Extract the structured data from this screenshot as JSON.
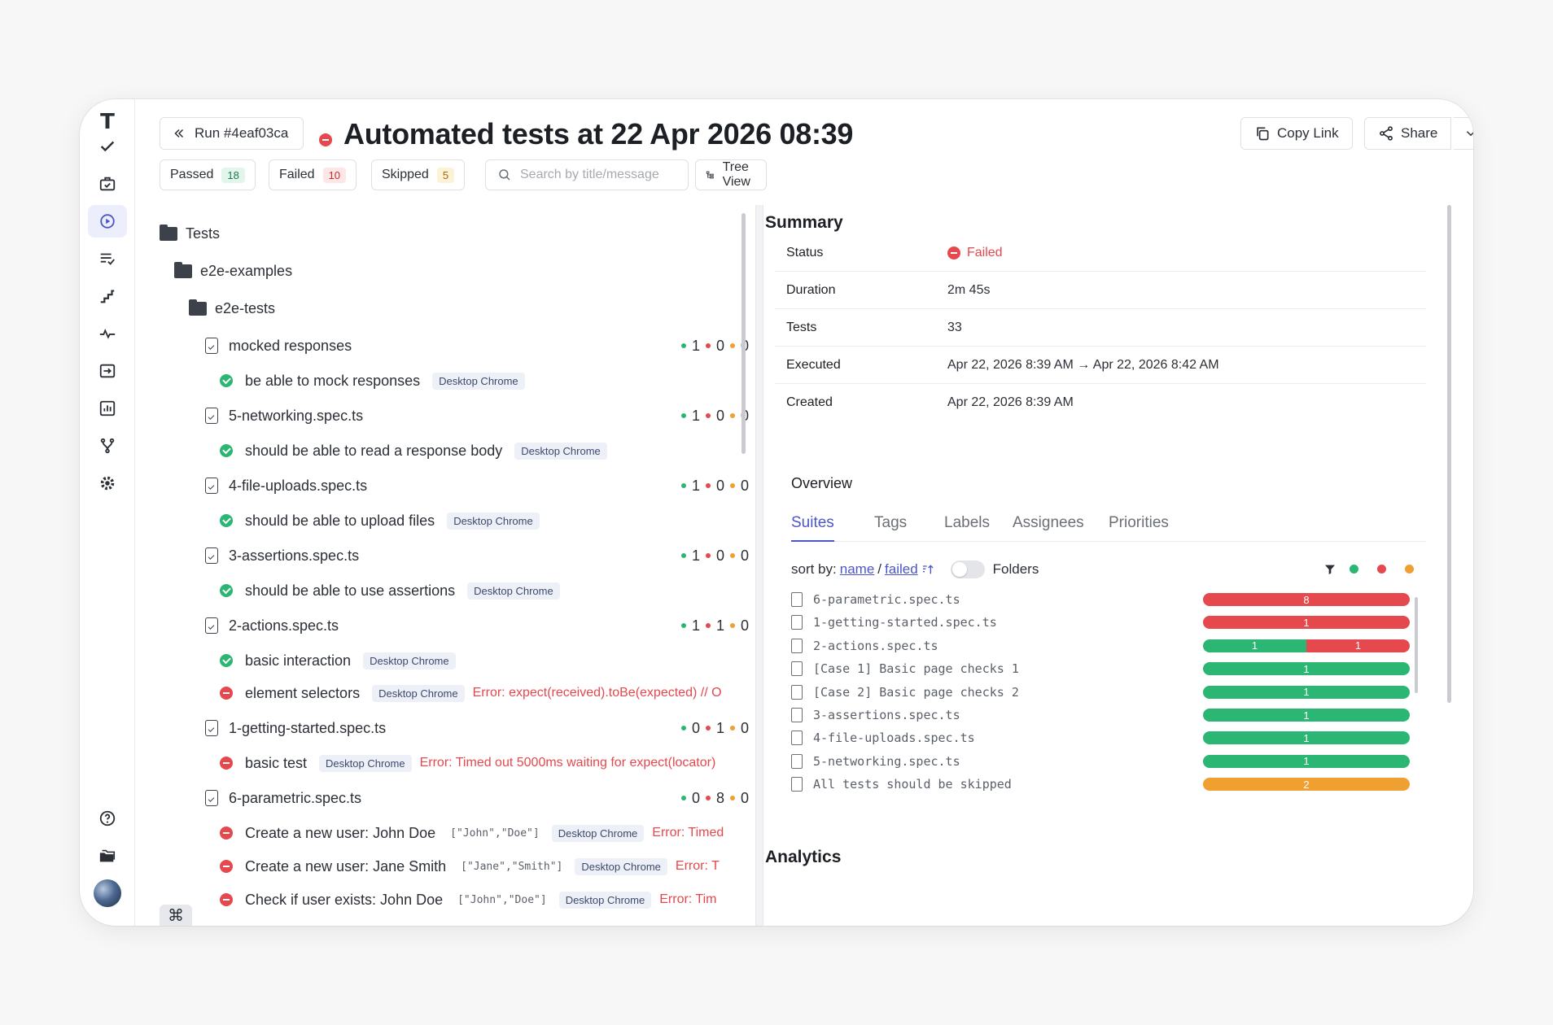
{
  "header": {
    "run_label": "Run #4eaf03ca",
    "title": "Automated tests at 22 Apr 2026 08:39",
    "copy_link": "Copy Link",
    "share": "Share"
  },
  "filters": {
    "passed_label": "Passed",
    "passed_count": "18",
    "failed_label": "Failed",
    "failed_count": "10",
    "skipped_label": "Skipped",
    "skipped_count": "5",
    "search_placeholder": "Search by title/message",
    "tree_view": "Tree View"
  },
  "tree": {
    "root": "Tests",
    "folder1": "e2e-examples",
    "folder2": "e2e-tests",
    "chip": "Desktop Chrome",
    "files": [
      {
        "name": "mocked responses",
        "passed": "1",
        "failed": "0",
        "skipped": "0",
        "tests": [
          {
            "title": "be able to mock responses",
            "status": "passed"
          }
        ]
      },
      {
        "name": "5-networking.spec.ts",
        "passed": "1",
        "failed": "0",
        "skipped": "0",
        "tests": [
          {
            "title": "should be able to read a response body",
            "status": "passed"
          }
        ]
      },
      {
        "name": "4-file-uploads.spec.ts",
        "passed": "1",
        "failed": "0",
        "skipped": "0",
        "tests": [
          {
            "title": "should be able to upload files",
            "status": "passed"
          }
        ]
      },
      {
        "name": "3-assertions.spec.ts",
        "passed": "1",
        "failed": "0",
        "skipped": "0",
        "tests": [
          {
            "title": "should be able to use assertions",
            "status": "passed"
          }
        ]
      },
      {
        "name": "2-actions.spec.ts",
        "passed": "1",
        "failed": "1",
        "skipped": "0",
        "tests": [
          {
            "title": "basic interaction",
            "status": "passed"
          },
          {
            "title": "element selectors",
            "status": "failed",
            "error": "Error: expect(received).toBe(expected) // O"
          }
        ]
      },
      {
        "name": "1-getting-started.spec.ts",
        "passed": "0",
        "failed": "1",
        "skipped": "0",
        "tests": [
          {
            "title": "basic test",
            "status": "failed",
            "error": "Error: Timed out 5000ms waiting for expect(locator)"
          }
        ]
      },
      {
        "name": "6-parametric.spec.ts",
        "passed": "0",
        "failed": "8",
        "skipped": "0",
        "tests": [
          {
            "title": "Create a new user: John Doe",
            "param": "[\"John\",\"Doe\"]",
            "status": "failed",
            "error": "Error: Timed"
          },
          {
            "title": "Create a new user: Jane Smith",
            "param": "[\"Jane\",\"Smith\"]",
            "status": "failed",
            "error": "Error: T"
          },
          {
            "title": "Check if user exists: John Doe",
            "param": "[\"John\",\"Doe\"]",
            "status": "failed",
            "error": "Error: Tim"
          }
        ]
      }
    ]
  },
  "summary": {
    "heading": "Summary",
    "status_label": "Status",
    "status_value": "Failed",
    "duration_label": "Duration",
    "duration_value": "2m 45s",
    "tests_label": "Tests",
    "tests_value": "33",
    "executed_label": "Executed",
    "executed_value": "Apr 22, 2026 8:39 AM → Apr 22, 2026 8:42 AM",
    "created_label": "Created",
    "created_value": "Apr 22, 2026 8:39 AM"
  },
  "overview": {
    "heading": "Overview",
    "tabs": [
      "Suites",
      "Tags",
      "Labels",
      "Assignees",
      "Priorities"
    ],
    "sort_by": "sort by:",
    "sort_name": "name",
    "sort_sep": "/",
    "sort_failed": "failed",
    "folders_label": "Folders",
    "suites": [
      {
        "name": "6-parametric.spec.ts",
        "passed": 0,
        "failed": 8,
        "skipped": 0
      },
      {
        "name": "1-getting-started.spec.ts",
        "passed": 0,
        "failed": 1,
        "skipped": 0
      },
      {
        "name": "2-actions.spec.ts",
        "passed": 1,
        "failed": 1,
        "skipped": 0
      },
      {
        "name": "[Case 1] Basic page checks 1",
        "passed": 1,
        "failed": 0,
        "skipped": 0
      },
      {
        "name": "[Case 2] Basic page checks 2",
        "passed": 1,
        "failed": 0,
        "skipped": 0
      },
      {
        "name": "3-assertions.spec.ts",
        "passed": 1,
        "failed": 0,
        "skipped": 0
      },
      {
        "name": "4-file-uploads.spec.ts",
        "passed": 1,
        "failed": 0,
        "skipped": 0
      },
      {
        "name": "5-networking.spec.ts",
        "passed": 1,
        "failed": 0,
        "skipped": 0
      },
      {
        "name": "All tests should be skipped",
        "passed": 0,
        "failed": 0,
        "skipped": 2
      }
    ]
  },
  "analytics": {
    "heading": "Analytics"
  },
  "colors": {
    "passed": "#2bb673",
    "failed": "#e5484d",
    "skipped": "#f0a030",
    "accent": "#4c56c5"
  }
}
